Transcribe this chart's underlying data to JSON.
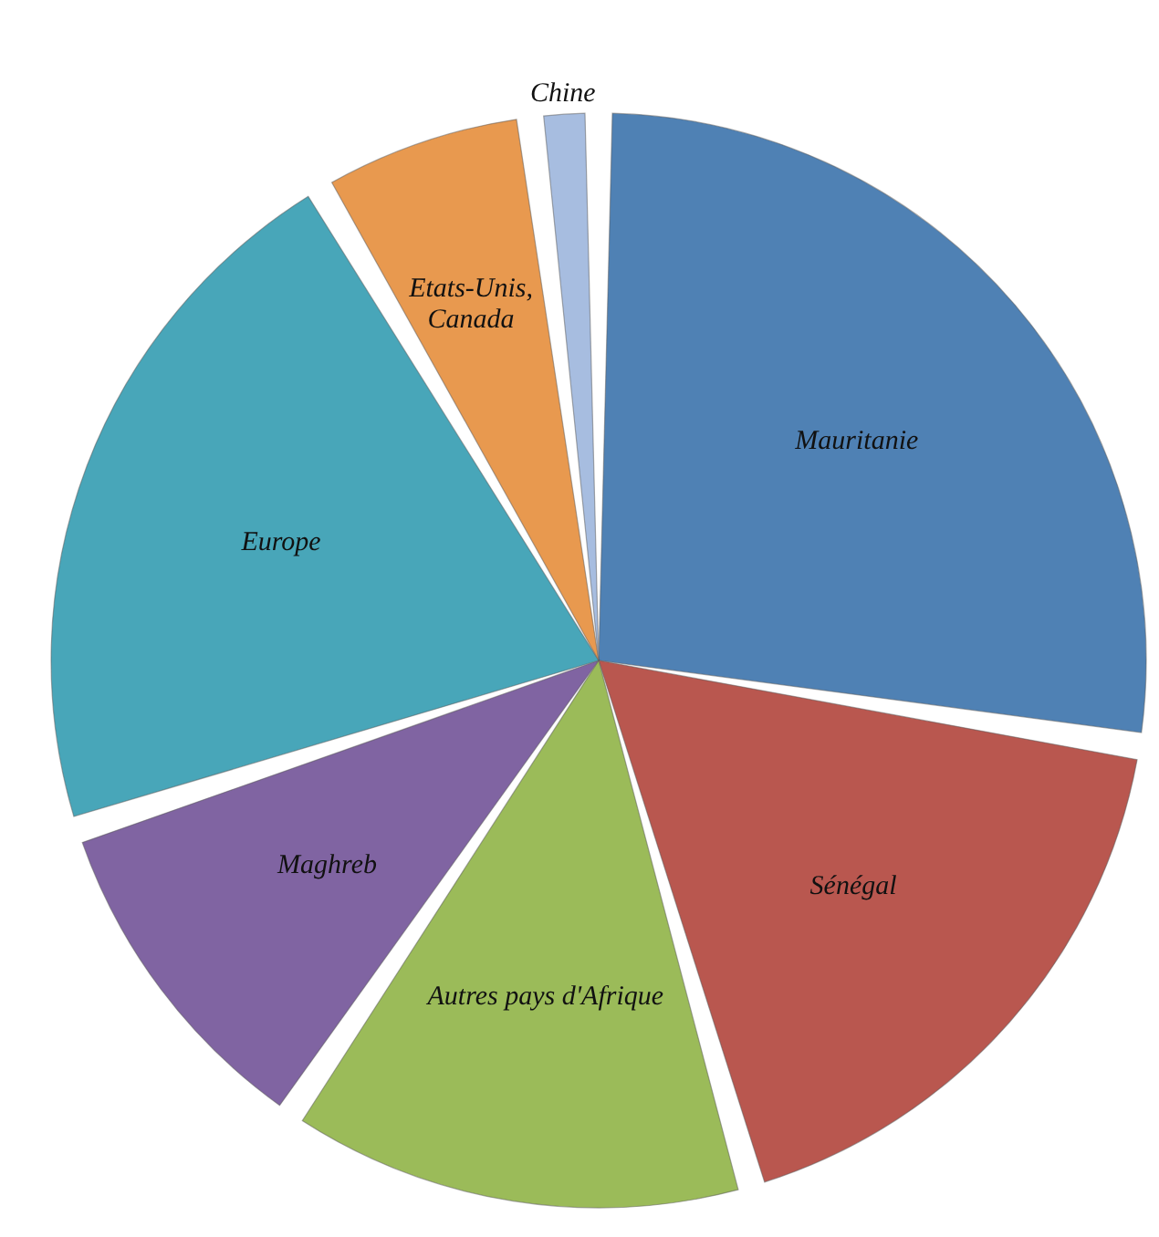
{
  "chart_data": {
    "type": "pie",
    "categories": [
      "Mauritanie",
      "Sénégal",
      "Autres pays d'Afrique",
      "Maghreb",
      "Europe",
      "Etats-Unis, Canada",
      "Chine"
    ],
    "values": [
      27.5,
      18,
      14,
      10.5,
      21.5,
      6.5,
      2
    ],
    "colors": [
      "#4f81b4",
      "#b9574f",
      "#9bbb59",
      "#8064a2",
      "#48a6b9",
      "#e8994f",
      "#a7bde0"
    ]
  }
}
